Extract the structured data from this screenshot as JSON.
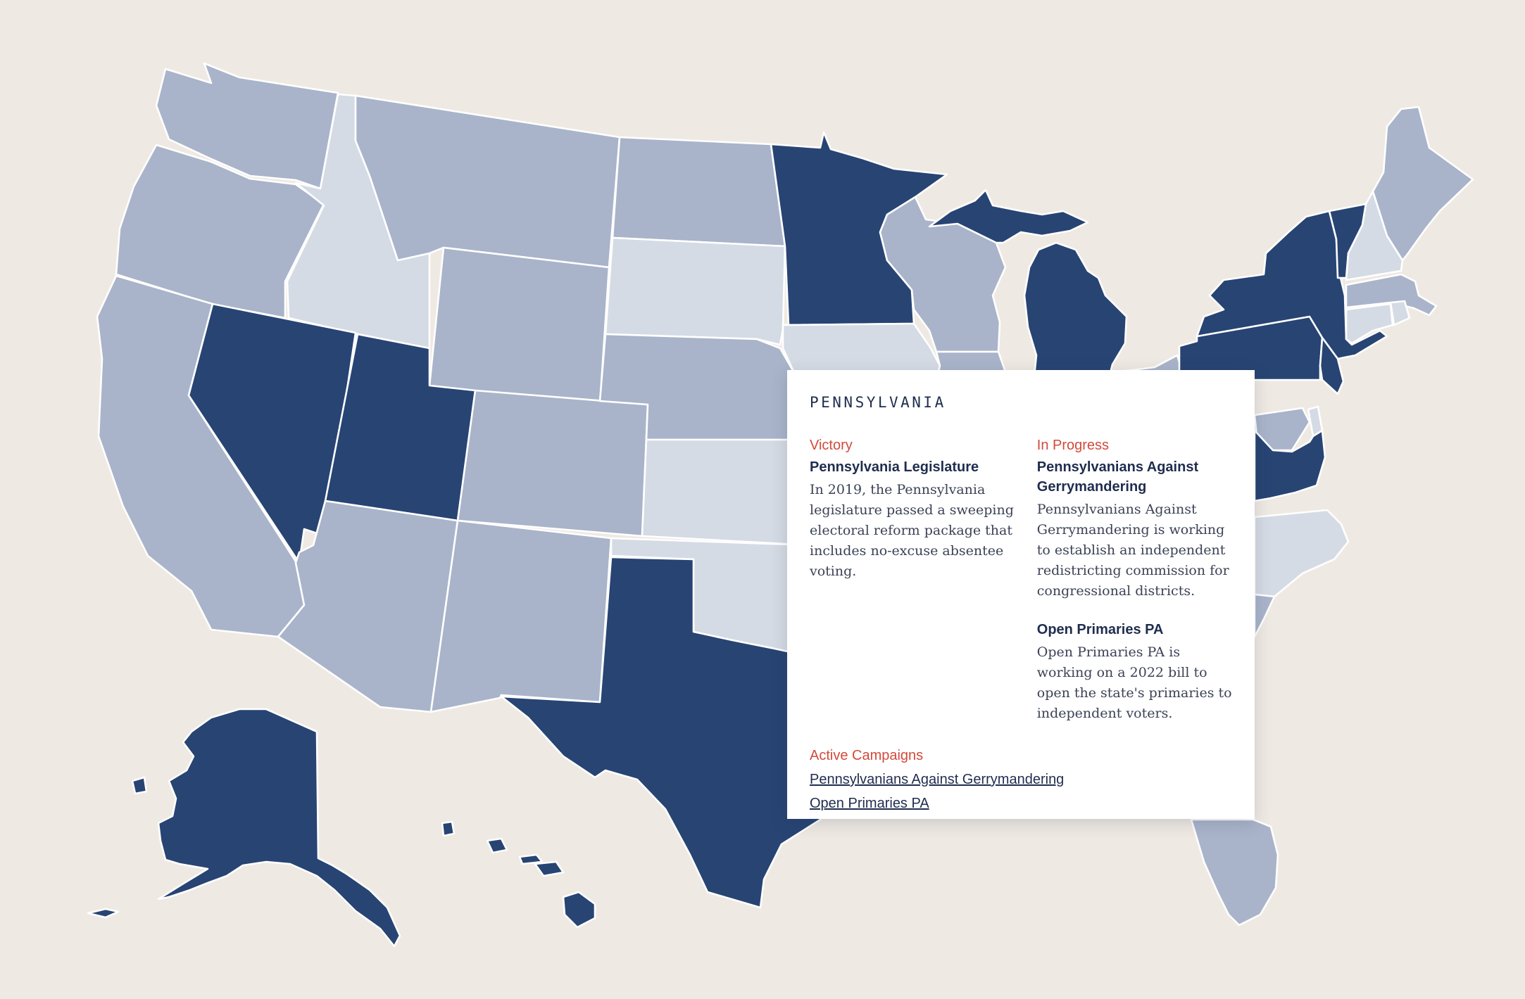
{
  "map": {
    "colors": {
      "background": "#efe9e3",
      "active": "#274473",
      "medium": "#a9b4ca",
      "light": "#d5dbe5",
      "border": "#ffffff"
    },
    "states": [
      {
        "id": "WA",
        "name": "Washington",
        "status": "medium"
      },
      {
        "id": "OR",
        "name": "Oregon",
        "status": "medium"
      },
      {
        "id": "CA",
        "name": "California",
        "status": "medium"
      },
      {
        "id": "ID",
        "name": "Idaho",
        "status": "light"
      },
      {
        "id": "NV",
        "name": "Nevada",
        "status": "active"
      },
      {
        "id": "MT",
        "name": "Montana",
        "status": "medium"
      },
      {
        "id": "WY",
        "name": "Wyoming",
        "status": "medium"
      },
      {
        "id": "UT",
        "name": "Utah",
        "status": "active"
      },
      {
        "id": "AZ",
        "name": "Arizona",
        "status": "medium"
      },
      {
        "id": "CO",
        "name": "Colorado",
        "status": "medium"
      },
      {
        "id": "NM",
        "name": "New Mexico",
        "status": "medium"
      },
      {
        "id": "ND",
        "name": "North Dakota",
        "status": "medium"
      },
      {
        "id": "SD",
        "name": "South Dakota",
        "status": "light"
      },
      {
        "id": "NE",
        "name": "Nebraska",
        "status": "medium"
      },
      {
        "id": "KS",
        "name": "Kansas",
        "status": "light"
      },
      {
        "id": "OK",
        "name": "Oklahoma",
        "status": "light"
      },
      {
        "id": "TX",
        "name": "Texas",
        "status": "active"
      },
      {
        "id": "MN",
        "name": "Minnesota",
        "status": "active"
      },
      {
        "id": "IA",
        "name": "Iowa",
        "status": "light"
      },
      {
        "id": "WI",
        "name": "Wisconsin",
        "status": "medium"
      },
      {
        "id": "MI",
        "name": "Michigan",
        "status": "active"
      },
      {
        "id": "IL",
        "name": "Illinois",
        "status": "medium"
      },
      {
        "id": "OH",
        "name": "Ohio",
        "status": "medium"
      },
      {
        "id": "NY",
        "name": "New York",
        "status": "active"
      },
      {
        "id": "VT",
        "name": "Vermont",
        "status": "active"
      },
      {
        "id": "NH",
        "name": "New Hampshire",
        "status": "light"
      },
      {
        "id": "ME",
        "name": "Maine",
        "status": "medium"
      },
      {
        "id": "MA",
        "name": "Massachusetts",
        "status": "medium"
      },
      {
        "id": "CT",
        "name": "Connecticut",
        "status": "light"
      },
      {
        "id": "RI",
        "name": "Rhode Island",
        "status": "light"
      },
      {
        "id": "PA",
        "name": "Pennsylvania",
        "status": "active"
      },
      {
        "id": "NJ",
        "name": "New Jersey",
        "status": "active"
      },
      {
        "id": "DE",
        "name": "Delaware",
        "status": "light"
      },
      {
        "id": "MD",
        "name": "Maryland",
        "status": "medium"
      },
      {
        "id": "VA",
        "name": "Virginia",
        "status": "active"
      },
      {
        "id": "NC",
        "name": "North Carolina",
        "status": "light"
      },
      {
        "id": "SC",
        "name": "South Carolina",
        "status": "medium"
      },
      {
        "id": "FL",
        "name": "Florida",
        "status": "medium"
      },
      {
        "id": "AK",
        "name": "Alaska",
        "status": "active"
      },
      {
        "id": "HI",
        "name": "Hawaii",
        "status": "active"
      }
    ]
  },
  "popup": {
    "title": "PENNSYLVANIA",
    "victory": {
      "label": "Victory",
      "heading": "Pennsylvania Legislature",
      "body": "In 2019, the Pennsylvania legislature passed a sweeping electoral reform package that includes no-excuse absentee voting."
    },
    "in_progress": {
      "label": "In Progress",
      "items": [
        {
          "heading": "Pennsylvanians Against Gerrymandering",
          "body": "Pennsylvanians Against Gerrymandering is working to establish an independent redistricting commission for congressional districts."
        },
        {
          "heading": "Open Primaries PA",
          "body": "Open Primaries PA is working on a 2022 bill to open the state's primaries to independent voters."
        }
      ]
    },
    "active_campaigns": {
      "label": "Active Campaigns",
      "links": [
        "Pennsylvanians Against Gerrymandering",
        "Open Primaries PA"
      ]
    }
  }
}
